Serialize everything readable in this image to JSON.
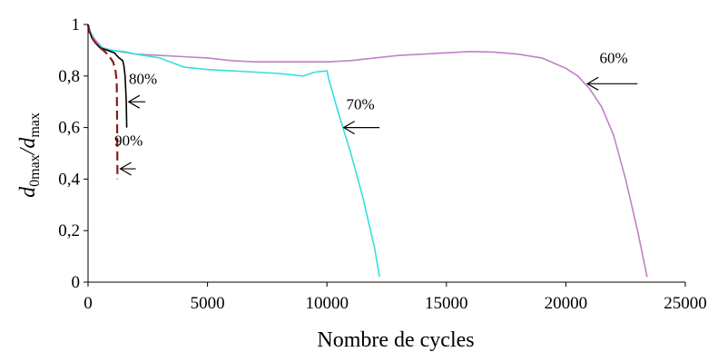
{
  "chart_data": {
    "type": "line",
    "title": "",
    "xlabel": "Nombre de cycles",
    "ylabel": {
      "parts": [
        {
          "text": "d",
          "sub": "0max"
        },
        {
          "text": "/d",
          "sub": "max"
        }
      ]
    },
    "xlim": [
      0,
      25000
    ],
    "ylim": [
      0,
      1
    ],
    "x_ticks": [
      0,
      5000,
      10000,
      15000,
      20000,
      25000
    ],
    "x_tick_labels": [
      "0",
      "5000",
      "10000",
      "15000",
      "20000",
      "25000"
    ],
    "y_ticks": [
      0,
      0.2,
      0.4,
      0.6,
      0.8,
      1
    ],
    "y_tick_labels": [
      "0",
      "0,2",
      "0,4",
      "0,6",
      "0,8",
      "1"
    ],
    "grid": false,
    "legend": "none",
    "series": [
      {
        "color": "#c080c8",
        "style": "solid",
        "points": [
          [
            0,
            1.0
          ],
          [
            100,
            0.97
          ],
          [
            300,
            0.94
          ],
          [
            600,
            0.91
          ],
          [
            1000,
            0.9
          ],
          [
            2000,
            0.885
          ],
          [
            3000,
            0.88
          ],
          [
            4000,
            0.875
          ],
          [
            5000,
            0.87
          ],
          [
            6000,
            0.86
          ],
          [
            7000,
            0.855
          ],
          [
            8000,
            0.855
          ],
          [
            9000,
            0.855
          ],
          [
            10000,
            0.855
          ],
          [
            11000,
            0.86
          ],
          [
            12000,
            0.87
          ],
          [
            13000,
            0.88
          ],
          [
            14000,
            0.885
          ],
          [
            15000,
            0.89
          ],
          [
            16000,
            0.895
          ],
          [
            17000,
            0.893
          ],
          [
            18000,
            0.885
          ],
          [
            19000,
            0.87
          ],
          [
            20000,
            0.83
          ],
          [
            20500,
            0.8
          ],
          [
            21000,
            0.75
          ],
          [
            21500,
            0.68
          ],
          [
            22000,
            0.57
          ],
          [
            22500,
            0.4
          ],
          [
            23000,
            0.2
          ],
          [
            23400,
            0.02
          ]
        ]
      },
      {
        "color": "#33e0e0",
        "style": "solid",
        "points": [
          [
            0,
            1.0
          ],
          [
            100,
            0.97
          ],
          [
            300,
            0.93
          ],
          [
            600,
            0.91
          ],
          [
            1000,
            0.9
          ],
          [
            1500,
            0.895
          ],
          [
            2000,
            0.885
          ],
          [
            3000,
            0.87
          ],
          [
            4000,
            0.835
          ],
          [
            5000,
            0.825
          ],
          [
            6000,
            0.82
          ],
          [
            7000,
            0.815
          ],
          [
            8000,
            0.81
          ],
          [
            9000,
            0.8
          ],
          [
            9500,
            0.815
          ],
          [
            10000,
            0.82
          ],
          [
            10100,
            0.78
          ],
          [
            10500,
            0.65
          ],
          [
            11000,
            0.5
          ],
          [
            11500,
            0.33
          ],
          [
            12000,
            0.13
          ],
          [
            12200,
            0.02
          ]
        ]
      },
      {
        "color": "#000000",
        "style": "solid",
        "points": [
          [
            0,
            1.0
          ],
          [
            50,
            0.98
          ],
          [
            150,
            0.95
          ],
          [
            300,
            0.93
          ],
          [
            500,
            0.91
          ],
          [
            800,
            0.9
          ],
          [
            1100,
            0.89
          ],
          [
            1300,
            0.87
          ],
          [
            1450,
            0.86
          ],
          [
            1500,
            0.84
          ],
          [
            1550,
            0.8
          ],
          [
            1600,
            0.7
          ],
          [
            1620,
            0.6
          ]
        ]
      },
      {
        "color": "#8b1a1a",
        "style": "dashed",
        "points": [
          [
            0,
            1.0
          ],
          [
            60,
            0.97
          ],
          [
            150,
            0.95
          ],
          [
            300,
            0.93
          ],
          [
            500,
            0.91
          ],
          [
            700,
            0.895
          ],
          [
            900,
            0.875
          ],
          [
            1050,
            0.855
          ],
          [
            1150,
            0.82
          ],
          [
            1200,
            0.78
          ],
          [
            1220,
            0.6
          ],
          [
            1230,
            0.4
          ]
        ]
      }
    ],
    "annotations": [
      {
        "text": "60%",
        "arrow_from": [
          23000,
          0.77
        ],
        "arrow_to": [
          20900,
          0.77
        ],
        "label_at": [
          22000,
          0.85
        ]
      },
      {
        "text": "70%",
        "arrow_from": [
          12200,
          0.6
        ],
        "arrow_to": [
          10700,
          0.6
        ],
        "label_at": [
          11400,
          0.67
        ]
      },
      {
        "text": "80%",
        "arrow_from": [
          2400,
          0.7
        ],
        "arrow_to": [
          1700,
          0.7
        ],
        "label_at": [
          2300,
          0.77
        ]
      },
      {
        "text": "90%",
        "arrow_from": [
          2000,
          0.44
        ],
        "arrow_to": [
          1350,
          0.44
        ],
        "label_at": [
          1700,
          0.53
        ]
      }
    ]
  }
}
